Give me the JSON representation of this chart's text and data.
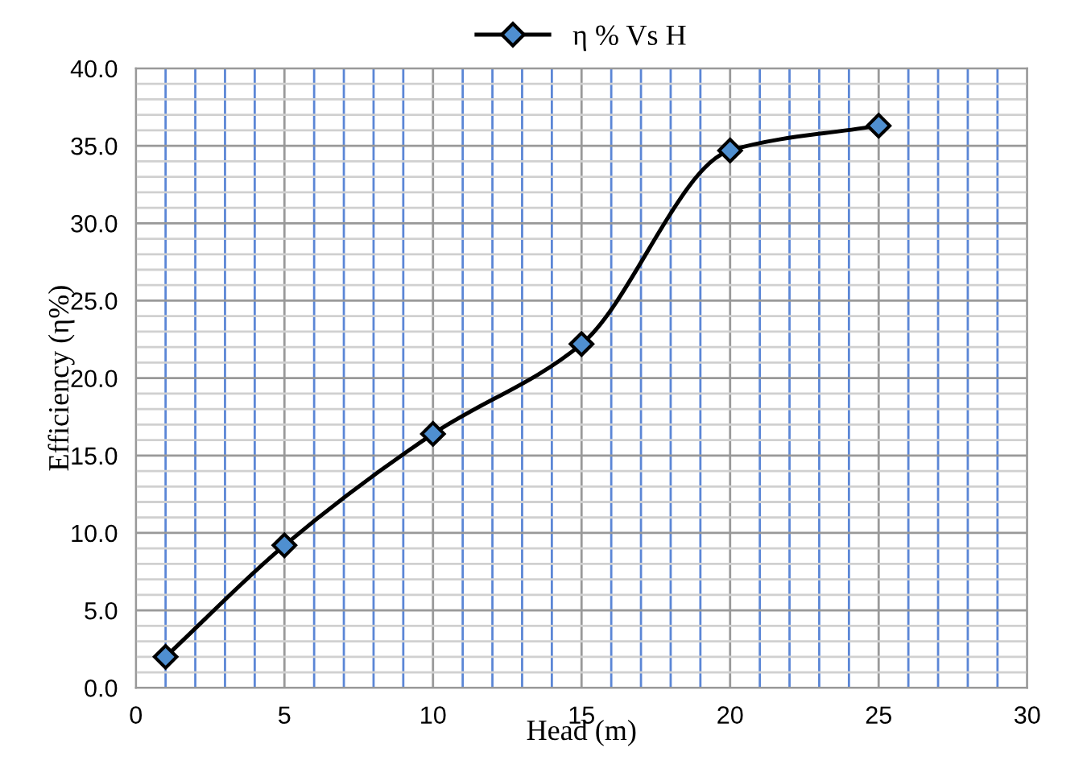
{
  "chart_data": {
    "type": "line",
    "xlabel": "Head (m)",
    "ylabel": "Efficiency (η%)",
    "x": [
      1,
      5,
      10,
      15,
      20,
      25
    ],
    "series": [
      {
        "name": "η % Vs H",
        "color": "#4f8fd0",
        "values": [
          2.0,
          9.2,
          16.4,
          22.2,
          34.7,
          36.3
        ]
      }
    ],
    "xlim": [
      0,
      30
    ],
    "xticks": [
      0,
      {
        "value": 1,
        "label": null
      },
      {
        "value": 2,
        "label": null
      },
      {
        "value": 3,
        "label": null
      },
      {
        "value": 4,
        "label": null
      },
      5,
      {
        "value": 6,
        "label": null
      },
      {
        "value": 7,
        "label": null
      },
      {
        "value": 8,
        "label": null
      },
      {
        "value": 9,
        "label": null
      },
      10,
      {
        "value": 11,
        "label": null
      },
      {
        "value": 12,
        "label": null
      },
      {
        "value": 13,
        "label": null
      },
      {
        "value": 14,
        "label": null
      },
      15,
      {
        "value": 16,
        "label": null
      },
      {
        "value": 17,
        "label": null
      },
      {
        "value": 18,
        "label": null
      },
      {
        "value": 19,
        "label": null
      },
      20,
      {
        "value": 21,
        "label": null
      },
      {
        "value": 22,
        "label": null
      },
      {
        "value": 23,
        "label": null
      },
      {
        "value": 24,
        "label": null
      },
      25,
      {
        "value": 26,
        "label": null
      },
      {
        "value": 27,
        "label": null
      },
      {
        "value": 28,
        "label": null
      },
      {
        "value": 29,
        "label": null
      },
      30
    ],
    "ylim": [
      0,
      40
    ],
    "yticks": [
      {
        "value": 0,
        "label": "0.0"
      },
      {
        "value": 1,
        "label": null
      },
      {
        "value": 2,
        "label": null
      },
      {
        "value": 3,
        "label": null
      },
      {
        "value": 4,
        "label": null
      },
      {
        "value": 5,
        "label": "5.0"
      },
      {
        "value": 6,
        "label": null
      },
      {
        "value": 7,
        "label": null
      },
      {
        "value": 8,
        "label": null
      },
      {
        "value": 9,
        "label": null
      },
      {
        "value": 10,
        "label": "10.0"
      },
      {
        "value": 11,
        "label": null
      },
      {
        "value": 12,
        "label": null
      },
      {
        "value": 13,
        "label": null
      },
      {
        "value": 14,
        "label": null
      },
      {
        "value": 15,
        "label": "15.0"
      },
      {
        "value": 16,
        "label": null
      },
      {
        "value": 17,
        "label": null
      },
      {
        "value": 18,
        "label": null
      },
      {
        "value": 19,
        "label": null
      },
      {
        "value": 20,
        "label": "20.0"
      },
      {
        "value": 21,
        "label": null
      },
      {
        "value": 22,
        "label": null
      },
      {
        "value": 23,
        "label": null
      },
      {
        "value": 24,
        "label": null
      },
      {
        "value": 25,
        "label": "25.0"
      },
      {
        "value": 26,
        "label": null
      },
      {
        "value": 27,
        "label": null
      },
      {
        "value": 28,
        "label": null
      },
      {
        "value": 29,
        "label": null
      },
      {
        "value": 30,
        "label": "30.0"
      },
      {
        "value": 31,
        "label": null
      },
      {
        "value": 32,
        "label": null
      },
      {
        "value": 33,
        "label": null
      },
      {
        "value": 34,
        "label": null
      },
      {
        "value": 35,
        "label": "35.0"
      },
      {
        "value": 36,
        "label": null
      },
      {
        "value": 37,
        "label": null
      },
      {
        "value": 38,
        "label": null
      },
      {
        "value": 39,
        "label": null
      },
      {
        "value": 40,
        "label": "40.0"
      }
    ],
    "grid": true,
    "legend": "top",
    "marker": "diamond",
    "line_style": "solid"
  }
}
